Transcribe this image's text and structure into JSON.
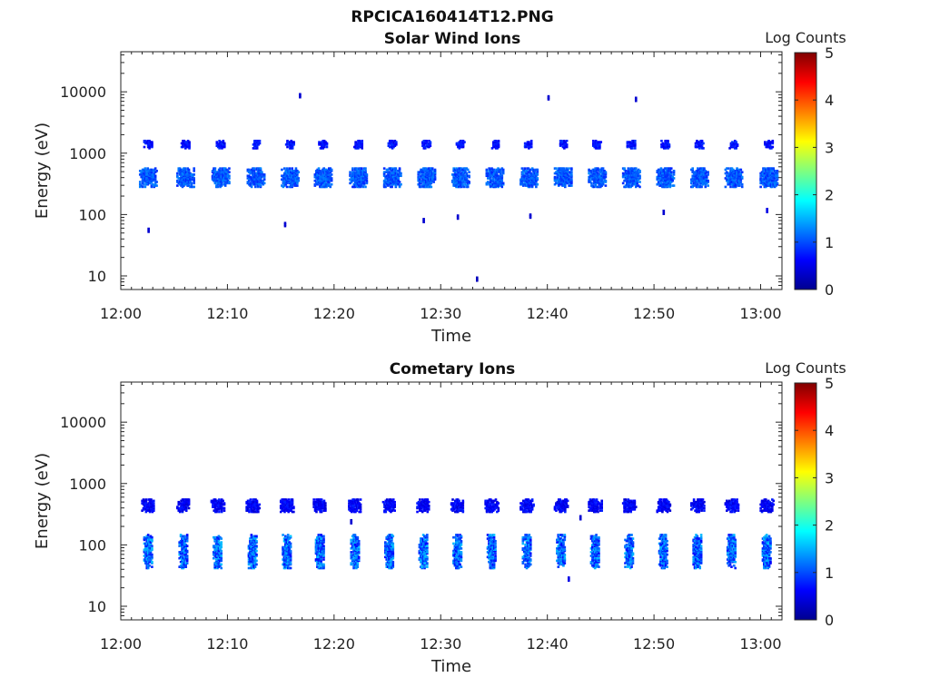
{
  "figure": {
    "title": "RPCICA160414T12.PNG"
  },
  "chart_data": [
    {
      "type": "heatmap",
      "title": "Solar Wind Ions",
      "xlabel": "Time",
      "ylabel": "Energy (eV)",
      "xlim": [
        "12:00",
        "13:02"
      ],
      "ylim": [
        6,
        45000
      ],
      "yscale": "log",
      "xticks": [
        "12:00",
        "12:10",
        "12:20",
        "12:30",
        "12:40",
        "12:50",
        "13:00"
      ],
      "yticks": [
        "10",
        "100",
        "1000",
        "10000"
      ],
      "colorbar": {
        "label": "Log Counts",
        "range": [
          0,
          5
        ],
        "ticks": [
          "0",
          "1",
          "2",
          "3",
          "4",
          "5"
        ],
        "colormap": "jet"
      },
      "grid": false,
      "pulse_times_min": [
        2.5,
        6.0,
        9.3,
        12.6,
        15.8,
        18.9,
        22.2,
        25.4,
        28.6,
        31.8,
        35.0,
        38.2,
        41.4,
        44.6,
        47.8,
        51.0,
        54.2,
        57.4,
        60.7
      ],
      "bands": [
        {
          "energy_eV": [
            270,
            560
          ],
          "log_counts": [
            0.8,
            1.3
          ],
          "duration_min": 1.6
        },
        {
          "energy_eV": [
            1150,
            1550
          ],
          "log_counts": [
            0.5,
            0.9
          ],
          "duration_min": 0.8
        }
      ],
      "isolated_points": [
        {
          "time_min": 2.5,
          "energy_eV": 50,
          "log_counts": 0.4
        },
        {
          "time_min": 15.3,
          "energy_eV": 62,
          "log_counts": 0.4
        },
        {
          "time_min": 16.7,
          "energy_eV": 7800,
          "log_counts": 0.4
        },
        {
          "time_min": 28.3,
          "energy_eV": 72,
          "log_counts": 0.4
        },
        {
          "time_min": 31.5,
          "energy_eV": 82,
          "log_counts": 0.4
        },
        {
          "time_min": 33.3,
          "energy_eV": 8,
          "log_counts": 0.3
        },
        {
          "time_min": 38.3,
          "energy_eV": 85,
          "log_counts": 0.4
        },
        {
          "time_min": 40.0,
          "energy_eV": 7200,
          "log_counts": 0.4
        },
        {
          "time_min": 48.2,
          "energy_eV": 6800,
          "log_counts": 0.4
        },
        {
          "time_min": 50.8,
          "energy_eV": 98,
          "log_counts": 0.4
        },
        {
          "time_min": 60.5,
          "energy_eV": 105,
          "log_counts": 0.5
        }
      ]
    },
    {
      "type": "heatmap",
      "title": "Cometary Ions",
      "xlabel": "Time",
      "ylabel": "Energy (eV)",
      "xlim": [
        "12:00",
        "13:02"
      ],
      "ylim": [
        6,
        45000
      ],
      "yscale": "log",
      "xticks": [
        "12:00",
        "12:10",
        "12:20",
        "12:30",
        "12:40",
        "12:50",
        "13:00"
      ],
      "yticks": [
        "10",
        "100",
        "1000",
        "10000"
      ],
      "colorbar": {
        "label": "Log Counts",
        "range": [
          0,
          5
        ],
        "ticks": [
          "0",
          "1",
          "2",
          "3",
          "4",
          "5"
        ],
        "colormap": "jet"
      },
      "grid": false,
      "pulse_times_min": [
        2.5,
        5.8,
        9.0,
        12.3,
        15.5,
        18.6,
        21.9,
        25.1,
        28.3,
        31.5,
        34.7,
        38.0,
        41.2,
        44.4,
        47.6,
        50.8,
        54.0,
        57.2,
        60.5
      ],
      "bands": [
        {
          "energy_eV": [
            330,
            530
          ],
          "log_counts": [
            0.4,
            0.8
          ],
          "duration_min": 1.2
        },
        {
          "energy_eV": [
            40,
            140
          ],
          "log_counts": [
            0.6,
            1.6
          ],
          "duration_min": 0.8
        }
      ],
      "isolated_points": [
        {
          "time_min": 21.5,
          "energy_eV": 215,
          "log_counts": 0.4
        },
        {
          "time_min": 41.9,
          "energy_eV": 25,
          "log_counts": 0.5
        },
        {
          "time_min": 43.0,
          "energy_eV": 250,
          "log_counts": 0.4
        }
      ]
    }
  ]
}
